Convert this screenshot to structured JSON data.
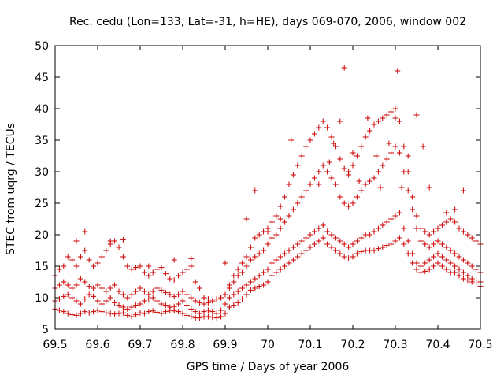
{
  "chart_data": {
    "type": "scatter",
    "title": "Rec. cedu (Lon=133, Lat=-31, h=HE), days 069-070, 2006, window 002",
    "xlabel": "GPS time / Days of year 2006",
    "ylabel": "STEC from uqrg / TECUs",
    "xlim": [
      69.5,
      70.5
    ],
    "ylim": [
      5,
      50
    ],
    "x_ticks": [
      "69.5",
      "69.6",
      "69.7",
      "69.8",
      "69.9",
      "70",
      "70.1",
      "70.2",
      "70.3",
      "70.4",
      "70.5"
    ],
    "y_ticks": [
      "5",
      "10",
      "15",
      "20",
      "25",
      "30",
      "35",
      "40",
      "45",
      "50"
    ],
    "grid": false,
    "legend": "none",
    "marker": "plus",
    "color": "#cc0000",
    "series": [
      {
        "x": [
          69.5,
          69.51,
          69.52,
          69.53,
          69.54,
          69.55,
          69.56,
          69.57,
          69.58,
          69.59,
          69.6,
          69.61,
          69.62,
          69.63,
          69.64,
          69.65,
          69.66,
          69.67,
          69.68,
          69.69,
          69.7,
          69.71,
          69.72,
          69.73,
          69.74,
          69.75,
          69.76,
          69.77,
          69.78,
          69.79,
          69.8,
          69.81,
          69.82,
          69.83,
          69.84,
          69.85,
          69.86,
          69.87,
          69.88,
          69.89,
          69.9,
          69.91,
          69.92,
          69.93,
          69.94,
          69.95,
          69.96,
          69.97,
          69.98,
          69.99,
          70.0,
          70.01,
          70.02,
          70.03,
          70.04,
          70.05,
          70.06,
          70.07,
          70.08,
          70.09,
          70.1,
          70.11,
          70.12,
          70.13,
          70.14,
          70.15,
          70.16,
          70.17,
          70.18,
          70.19,
          70.2,
          70.21,
          70.22,
          70.23,
          70.24,
          70.25,
          70.26,
          70.27,
          70.28,
          70.29,
          70.3,
          70.31,
          70.32,
          70.33,
          70.34,
          70.35,
          70.36,
          70.37,
          70.38,
          70.39,
          70.4,
          70.41,
          70.42,
          70.43,
          70.44,
          70.45,
          70.46,
          70.47,
          70.48,
          70.49,
          70.5
        ],
        "y": [
          8.2,
          8.0,
          7.8,
          7.5,
          7.3,
          7.2,
          7.5,
          7.8,
          7.6,
          7.8,
          8.0,
          7.8,
          7.6,
          7.5,
          7.4,
          7.5,
          7.6,
          7.2,
          7.0,
          7.3,
          7.6,
          7.5,
          7.8,
          7.9,
          7.7,
          7.5,
          7.8,
          8.0,
          7.9,
          7.8,
          7.5,
          7.2,
          7.0,
          6.8,
          6.8,
          7.0,
          7.0,
          6.9,
          6.8,
          7.0,
          7.5,
          8.5,
          8.8,
          9.2,
          9.8,
          10.5,
          11.2,
          11.5,
          11.8,
          12.0,
          12.5,
          13.5,
          14.0,
          14.5,
          15.0,
          15.5,
          16.0,
          16.5,
          17.0,
          17.5,
          18.0,
          18.5,
          19.0,
          19.5,
          18.5,
          18.0,
          17.5,
          17.0,
          16.5,
          16.3,
          16.5,
          17.0,
          17.3,
          17.5,
          17.5,
          17.5,
          17.8,
          18.0,
          18.3,
          18.5,
          19.0,
          19.5,
          18.5,
          17.0,
          15.5,
          14.5,
          14.0,
          14.2,
          14.5,
          15.0,
          15.5,
          15.0,
          14.5,
          14.0,
          14.0,
          13.5,
          13.0,
          12.8,
          12.5,
          12.2,
          11.8
        ]
      },
      {
        "x": [
          69.5,
          69.51,
          69.52,
          69.53,
          69.54,
          69.55,
          69.56,
          69.57,
          69.58,
          69.59,
          69.6,
          69.61,
          69.62,
          69.63,
          69.64,
          69.65,
          69.66,
          69.67,
          69.68,
          69.69,
          69.7,
          69.71,
          69.72,
          69.73,
          69.74,
          69.75,
          69.76,
          69.77,
          69.78,
          69.79,
          69.8,
          69.81,
          69.82,
          69.83,
          69.84,
          69.85,
          69.86,
          69.87,
          69.88,
          69.89,
          69.9,
          69.91,
          69.92,
          69.93,
          69.94,
          69.95,
          69.96,
          69.97,
          69.98,
          69.99,
          70.0,
          70.01,
          70.02,
          70.03,
          70.04,
          70.05,
          70.06,
          70.07,
          70.08,
          70.09,
          70.1,
          70.11,
          70.12,
          70.13,
          70.14,
          70.15,
          70.16,
          70.17,
          70.18,
          70.19,
          70.2,
          70.21,
          70.22,
          70.23,
          70.24,
          70.25,
          70.26,
          70.27,
          70.28,
          70.29,
          70.3,
          70.31,
          70.32,
          70.33,
          70.34,
          70.35,
          70.36,
          70.37,
          70.38,
          70.39,
          70.4,
          70.41,
          70.42,
          70.43,
          70.44,
          70.45,
          70.46,
          70.47,
          70.48,
          70.49,
          70.5
        ],
        "y": [
          9.5,
          9.8,
          10.2,
          10.5,
          10.0,
          9.5,
          9.0,
          9.8,
          10.5,
          10.2,
          9.5,
          9.0,
          9.5,
          10.0,
          9.2,
          8.8,
          8.5,
          8.2,
          8.5,
          8.8,
          9.0,
          9.5,
          9.8,
          10.0,
          9.5,
          9.0,
          8.8,
          8.5,
          8.6,
          9.0,
          9.5,
          8.8,
          8.2,
          7.8,
          7.5,
          7.8,
          8.0,
          7.8,
          7.5,
          8.0,
          9.0,
          10.0,
          10.5,
          11.0,
          11.5,
          12.0,
          12.5,
          13.0,
          13.5,
          14.0,
          14.5,
          15.5,
          16.0,
          16.5,
          17.0,
          17.5,
          18.0,
          18.5,
          19.0,
          19.5,
          20.0,
          20.5,
          21.0,
          21.5,
          20.5,
          20.0,
          19.5,
          19.0,
          18.5,
          18.0,
          18.5,
          19.0,
          19.5,
          20.0,
          20.0,
          20.5,
          21.0,
          21.5,
          22.0,
          22.5,
          23.0,
          23.5,
          21.0,
          19.0,
          17.0,
          15.5,
          15.0,
          15.5,
          16.0,
          16.5,
          17.0,
          16.5,
          16.0,
          15.5,
          15.0,
          14.5,
          14.0,
          13.5,
          13.0,
          12.8,
          12.5
        ]
      },
      {
        "x": [
          69.5,
          69.51,
          69.52,
          69.53,
          69.54,
          69.55,
          69.56,
          69.57,
          69.58,
          69.59,
          69.6,
          69.61,
          69.62,
          69.63,
          69.64,
          69.65,
          69.66,
          69.67,
          69.68,
          69.69,
          69.7,
          69.71,
          69.72,
          69.73,
          69.74,
          69.75,
          69.76,
          69.77,
          69.78,
          69.79,
          69.8,
          69.81,
          69.82,
          69.83,
          69.84,
          69.85,
          69.86,
          69.87,
          69.88,
          69.89,
          69.9,
          69.91,
          69.92,
          69.93,
          69.94,
          69.95,
          69.96,
          69.97,
          69.98,
          69.99,
          70.0,
          70.01,
          70.02,
          70.03,
          70.04,
          70.05,
          70.06,
          70.07,
          70.08,
          70.09,
          70.1,
          70.11,
          70.12,
          70.13,
          70.14,
          70.15,
          70.16,
          70.17,
          70.18,
          70.19,
          70.2,
          70.21,
          70.22,
          70.23,
          70.24,
          70.25,
          70.26,
          70.27,
          70.28,
          70.29,
          70.3,
          70.31,
          70.32,
          70.33,
          70.34,
          70.35,
          70.36,
          70.37,
          70.38,
          70.39,
          70.4,
          70.41,
          70.42,
          70.43,
          70.44,
          70.45,
          70.46,
          70.47,
          70.48,
          70.49,
          70.5
        ],
        "y": [
          11.5,
          12.0,
          12.5,
          12.0,
          11.5,
          12.0,
          13.0,
          12.5,
          11.8,
          11.5,
          12.0,
          11.5,
          11.0,
          11.5,
          12.0,
          11.0,
          10.5,
          10.0,
          10.5,
          11.0,
          11.5,
          11.0,
          10.5,
          11.0,
          11.5,
          11.2,
          10.8,
          10.5,
          10.2,
          10.5,
          11.0,
          10.5,
          10.0,
          9.5,
          9.2,
          9.0,
          9.2,
          9.5,
          9.8,
          10.0,
          10.5,
          11.5,
          12.5,
          13.5,
          14.0,
          15.0,
          16.0,
          16.5,
          17.0,
          17.5,
          18.5,
          19.5,
          20.0,
          21.0,
          22.0,
          23.0,
          24.0,
          25.0,
          26.0,
          27.0,
          28.0,
          29.0,
          30.0,
          31.0,
          30.0,
          29.0,
          28.0,
          26.0,
          25.0,
          24.5,
          25.0,
          26.0,
          27.0,
          28.0,
          28.5,
          29.0,
          30.0,
          31.0,
          32.0,
          33.0,
          34.0,
          33.0,
          30.0,
          27.0,
          24.0,
          21.0,
          19.0,
          18.5,
          18.0,
          18.5,
          19.0,
          18.5,
          18.0,
          17.5,
          17.0,
          16.5,
          16.0,
          15.5,
          15.0,
          14.5,
          14.0
        ]
      },
      {
        "x": [
          69.5,
          69.51,
          69.52,
          69.53,
          69.54,
          69.55,
          69.56,
          69.57,
          69.58,
          69.59,
          69.6,
          69.61,
          69.62,
          69.63,
          69.64,
          69.65,
          69.66,
          69.67,
          69.68,
          69.69,
          69.7,
          69.71,
          69.72,
          69.73,
          69.74,
          69.75,
          69.76,
          69.77,
          69.78,
          69.79,
          69.8,
          69.81,
          69.82,
          69.83,
          69.84,
          69.85,
          69.86,
          69.87,
          69.88,
          69.89,
          69.9,
          69.91,
          69.92,
          69.93,
          69.94,
          69.95,
          69.96,
          69.97,
          69.98,
          69.99,
          70.0,
          70.01,
          70.02,
          70.03,
          70.04,
          70.05,
          70.06,
          70.07,
          70.08,
          70.09,
          70.1,
          70.11,
          70.12,
          70.13,
          70.14,
          70.15,
          70.16,
          70.17,
          70.18,
          70.19,
          70.2,
          70.21,
          70.22,
          70.23,
          70.24,
          70.25,
          70.26,
          70.27,
          70.28,
          70.29,
          70.3,
          70.31,
          70.32,
          70.33,
          70.34,
          70.35,
          70.36,
          70.37,
          70.38,
          70.39,
          70.4,
          70.41,
          70.42,
          70.43,
          70.44,
          70.45,
          70.46,
          70.47,
          70.48,
          70.49,
          70.5
        ],
        "y": [
          13.5,
          14.5,
          15.0,
          16.5,
          16.0,
          15.0,
          16.5,
          17.5,
          16.0,
          15.0,
          15.5,
          16.5,
          17.5,
          18.5,
          19.0,
          18.0,
          16.5,
          15.0,
          14.5,
          14.8,
          15.0,
          14.0,
          13.5,
          14.0,
          14.5,
          14.8,
          13.8,
          13.0,
          12.8,
          13.5,
          14.0,
          14.5,
          15.0,
          12.5,
          11.5,
          10.0,
          9.8,
          9.5,
          9.8,
          10.0,
          10.5,
          12.0,
          13.5,
          14.5,
          15.5,
          16.5,
          18.0,
          19.5,
          20.0,
          20.5,
          21.0,
          22.0,
          23.0,
          24.5,
          26.0,
          28.0,
          29.5,
          31.0,
          32.5,
          34.0,
          35.0,
          36.0,
          37.0,
          38.0,
          37.0,
          35.5,
          34.0,
          32.0,
          30.5,
          30.0,
          31.0,
          32.5,
          34.0,
          35.5,
          36.5,
          37.5,
          38.0,
          38.5,
          39.0,
          39.5,
          40.0,
          38.0,
          34.0,
          30.0,
          26.0,
          23.0,
          21.0,
          20.5,
          20.0,
          20.5,
          21.0,
          21.5,
          22.0,
          22.5,
          22.0,
          21.0,
          20.5,
          20.0,
          19.5,
          19.0,
          18.5
        ]
      },
      {
        "x": [
          69.55,
          69.57,
          69.63,
          69.66,
          69.72,
          69.78,
          69.82,
          69.9,
          69.95,
          69.97,
          70.0,
          70.03,
          70.055,
          70.12,
          70.145,
          70.155,
          70.17,
          70.18,
          70.19,
          70.2,
          70.215,
          70.235,
          70.255,
          70.265,
          70.285,
          70.3,
          70.305,
          70.315,
          70.33,
          70.35,
          70.365,
          70.38,
          70.42,
          70.44,
          70.46
        ],
        "y": [
          19.0,
          20.5,
          19.0,
          19.2,
          15.0,
          16.0,
          16.2,
          15.5,
          22.5,
          27.0,
          20.5,
          22.5,
          35.0,
          28.0,
          31.5,
          34.5,
          38.0,
          46.5,
          29.5,
          33.0,
          28.5,
          38.5,
          32.5,
          27.5,
          34.5,
          38.5,
          46.0,
          27.5,
          32.5,
          39.0,
          34.0,
          27.5,
          23.5,
          24.0,
          27.0
        ]
      }
    ]
  }
}
